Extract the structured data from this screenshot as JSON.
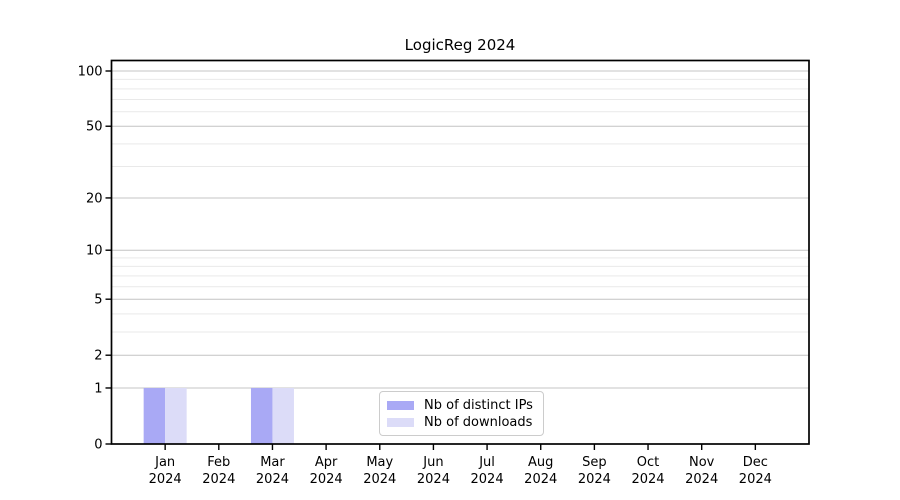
{
  "chart_data": {
    "type": "bar",
    "title": "LogicReg 2024",
    "categories": [
      "Jan 2024",
      "Feb 2024",
      "Mar 2024",
      "Apr 2024",
      "May 2024",
      "Jun 2024",
      "Jul 2024",
      "Aug 2024",
      "Sep 2024",
      "Oct 2024",
      "Nov 2024",
      "Dec 2024"
    ],
    "series": [
      {
        "name": "Nb of distinct IPs",
        "color": "#a9a9f5",
        "values": [
          1,
          0,
          1,
          0,
          0,
          0,
          0,
          0,
          0,
          0,
          0,
          0
        ]
      },
      {
        "name": "Nb of downloads",
        "color": "#dcdcf8",
        "values": [
          1,
          0,
          1,
          0,
          0,
          0,
          0,
          0,
          0,
          0,
          0,
          0
        ]
      }
    ],
    "xlabel": "",
    "ylabel": "",
    "yscale": "log1p",
    "yticks": [
      0,
      1,
      2,
      5,
      10,
      20,
      50,
      100
    ],
    "yticks_minor": [
      3,
      4,
      6,
      7,
      8,
      9,
      30,
      40,
      60,
      70,
      80,
      90
    ],
    "ylim": [
      0,
      113
    ],
    "grid": "both",
    "legend_position": "lower center",
    "colors": {
      "spine": "#000000",
      "grid_major": "#c4c4c4",
      "grid_minor": "#e9e9e9",
      "text": "#000000",
      "legend_border": "#cccccc",
      "background": "#ffffff"
    }
  }
}
